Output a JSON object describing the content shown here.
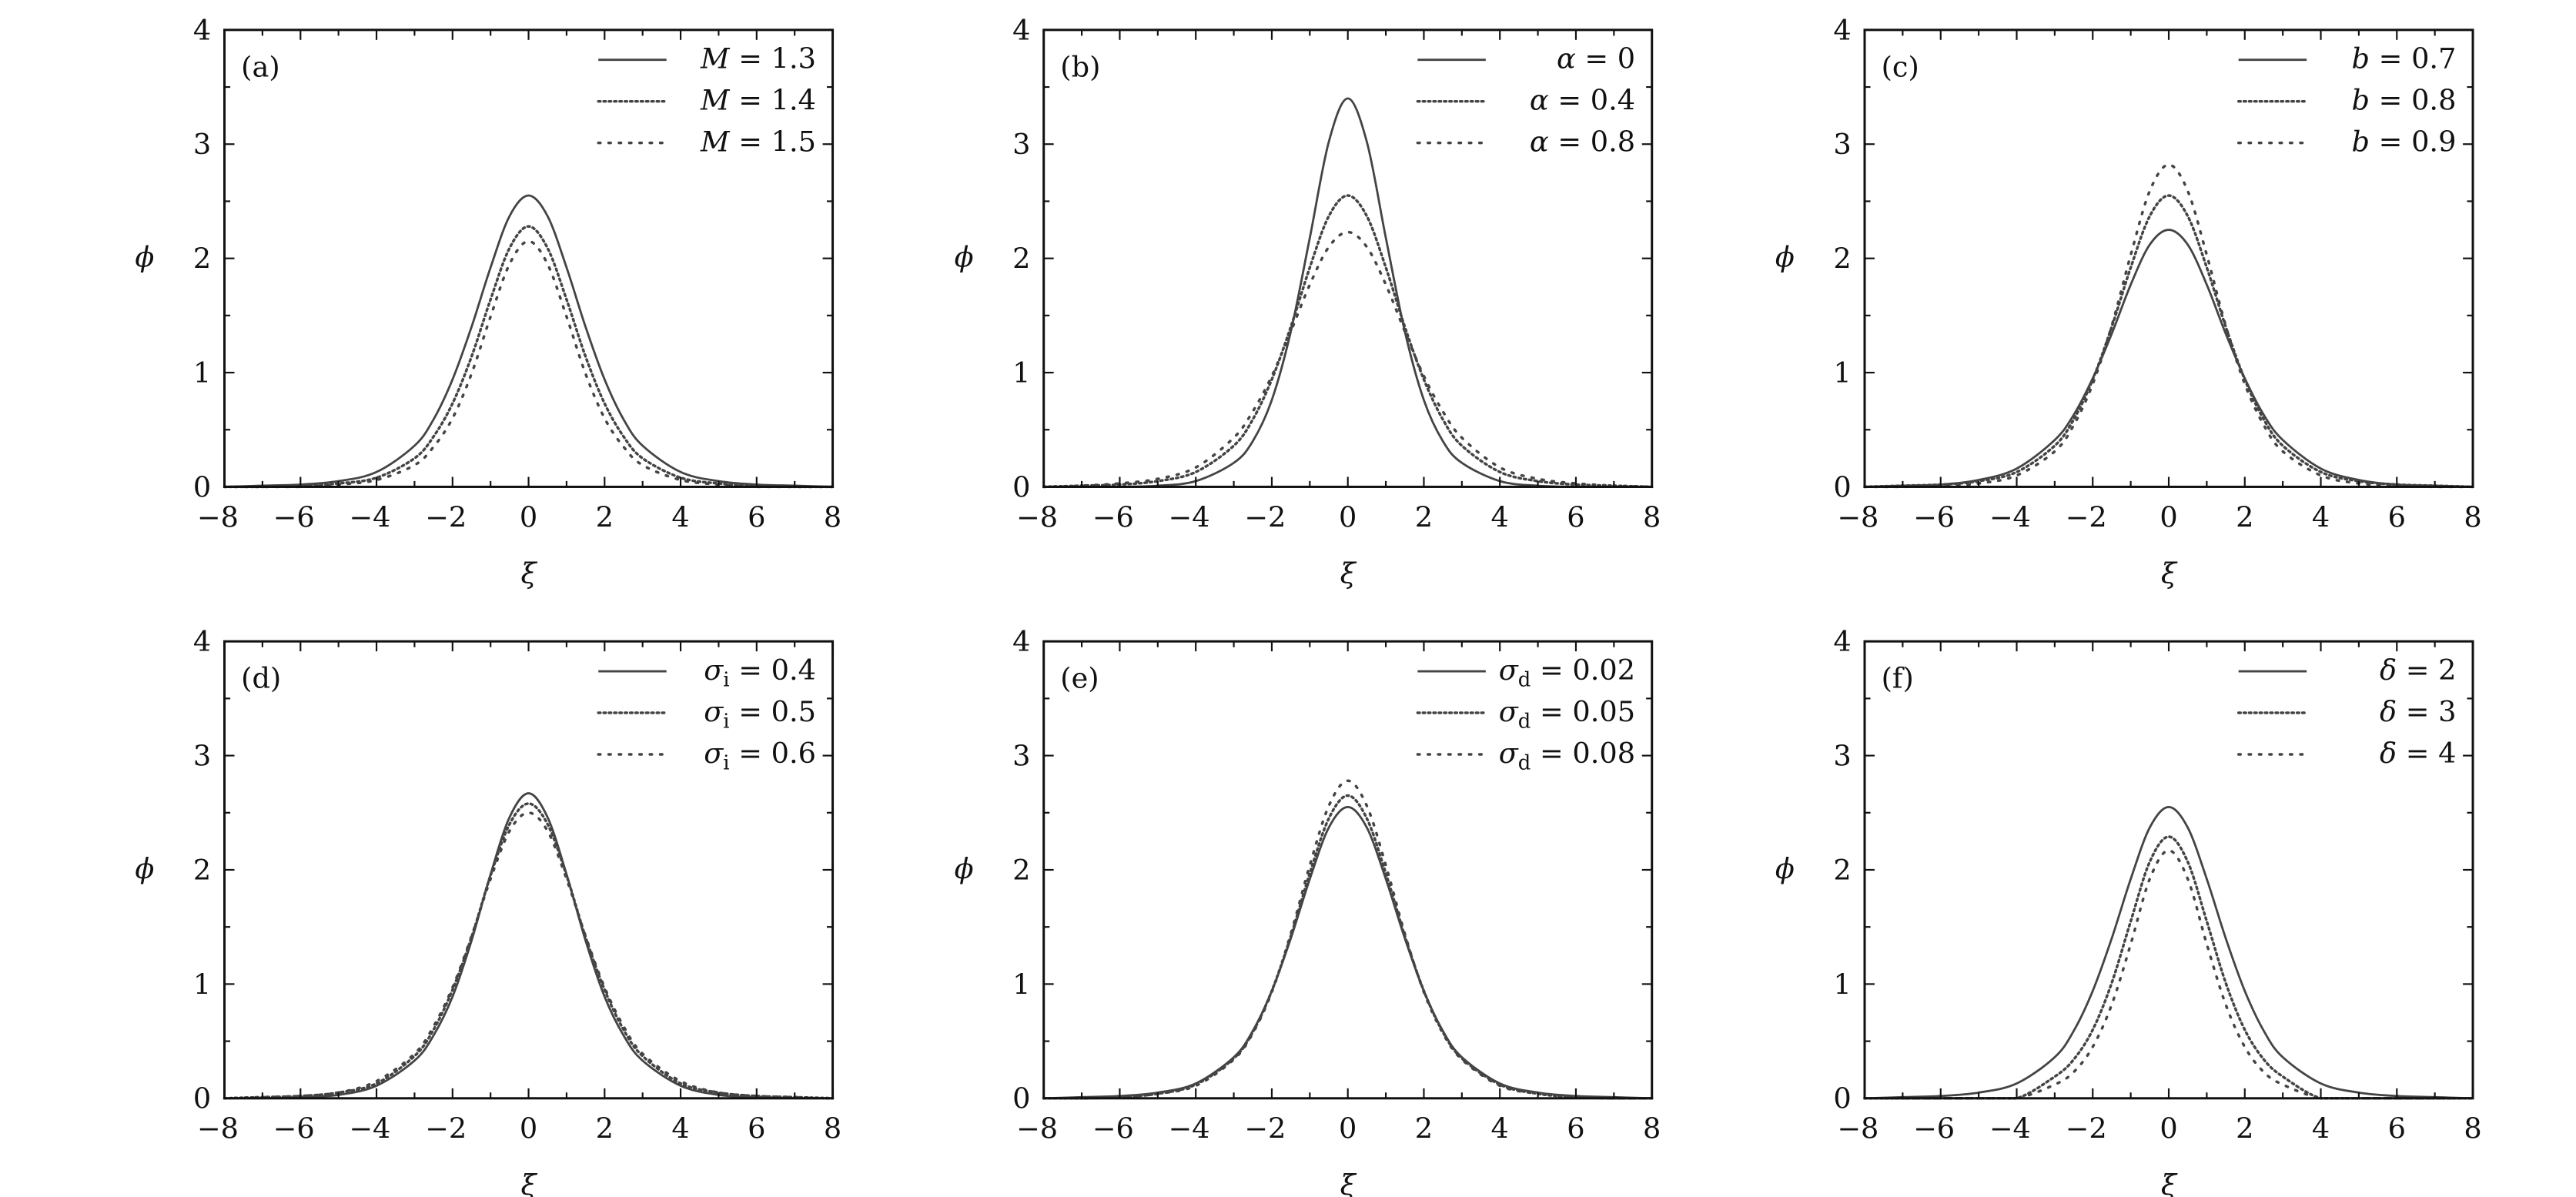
{
  "chart_data": [
    {
      "panel_label": "(a)",
      "type": "line",
      "xlabel": "ξ",
      "ylabel": "ϕ",
      "xlim": [
        -8,
        8
      ],
      "ylim": [
        0,
        4
      ],
      "xticks": [
        "−8",
        "−6",
        "−4",
        "−2",
        "0",
        "2",
        "4",
        "6",
        "8"
      ],
      "yticks": [
        "0",
        "1",
        "2",
        "3",
        "4"
      ],
      "legend": "top-right",
      "grid": false,
      "x": [
        -8,
        -7,
        -6,
        -5,
        -4,
        -3,
        -2.5,
        -2,
        -1.5,
        -1,
        -0.5,
        0,
        0.5,
        1,
        1.5,
        2,
        2.5,
        3,
        4,
        5,
        6,
        7,
        8
      ],
      "series": [
        {
          "sym": "M",
          "sub": "",
          "val": " = 1.3",
          "style": "solid",
          "values": [
            0,
            0.01,
            0.02,
            0.05,
            0.13,
            0.36,
            0.59,
            0.94,
            1.4,
            1.92,
            2.37,
            2.55,
            2.37,
            1.92,
            1.4,
            0.94,
            0.59,
            0.36,
            0.13,
            0.05,
            0.02,
            0.01,
            0
          ]
        },
        {
          "sym": "M",
          "sub": "",
          "val": " = 1.4",
          "style": "dotted",
          "values": [
            0,
            0,
            0.01,
            0.03,
            0.08,
            0.25,
            0.44,
            0.73,
            1.14,
            1.64,
            2.09,
            2.28,
            2.09,
            1.64,
            1.14,
            0.73,
            0.44,
            0.25,
            0.08,
            0.03,
            0.01,
            0,
            0
          ]
        },
        {
          "sym": "M",
          "sub": "",
          "val": " = 1.5",
          "style": "sparse",
          "values": [
            0,
            0,
            0,
            0.02,
            0.06,
            0.19,
            0.35,
            0.6,
            0.99,
            1.49,
            1.95,
            2.15,
            1.95,
            1.49,
            0.99,
            0.6,
            0.35,
            0.19,
            0.06,
            0.02,
            0,
            0,
            0
          ]
        }
      ]
    },
    {
      "panel_label": "(b)",
      "type": "line",
      "xlabel": "ξ",
      "ylabel": "ϕ",
      "xlim": [
        -8,
        8
      ],
      "ylim": [
        0,
        4
      ],
      "xticks": [
        "−8",
        "−6",
        "−4",
        "−2",
        "0",
        "2",
        "4",
        "6",
        "8"
      ],
      "yticks": [
        "0",
        "1",
        "2",
        "3",
        "4"
      ],
      "legend": "top-right",
      "grid": false,
      "x": [
        -8,
        -7,
        -6,
        -5,
        -4,
        -3,
        -2.5,
        -2,
        -1.5,
        -1,
        -0.5,
        0,
        0.5,
        1,
        1.5,
        2,
        2.5,
        3,
        4,
        5,
        6,
        7,
        8
      ],
      "series": [
        {
          "sym": "α",
          "sub": "",
          "val": " = 0",
          "style": "solid",
          "values": [
            0,
            0,
            0,
            0.01,
            0.05,
            0.21,
            0.4,
            0.76,
            1.36,
            2.18,
            3.02,
            3.4,
            3.02,
            2.18,
            1.36,
            0.76,
            0.4,
            0.21,
            0.05,
            0.01,
            0,
            0,
            0
          ]
        },
        {
          "sym": "α",
          "sub": "",
          "val": " = 0.4",
          "style": "dotted",
          "values": [
            0,
            0.01,
            0.02,
            0.05,
            0.13,
            0.36,
            0.59,
            0.94,
            1.4,
            1.92,
            2.37,
            2.55,
            2.37,
            1.92,
            1.4,
            0.94,
            0.59,
            0.36,
            0.13,
            0.05,
            0.02,
            0.01,
            0
          ]
        },
        {
          "sym": "α",
          "sub": "",
          "val": " = 0.8",
          "style": "sparse",
          "values": [
            0,
            0.01,
            0.03,
            0.07,
            0.17,
            0.43,
            0.66,
            0.97,
            1.36,
            1.77,
            2.1,
            2.23,
            2.1,
            1.77,
            1.36,
            0.97,
            0.66,
            0.43,
            0.17,
            0.07,
            0.03,
            0.01,
            0
          ]
        }
      ]
    },
    {
      "panel_label": "(c)",
      "type": "line",
      "xlabel": "ξ",
      "ylabel": "ϕ",
      "xlim": [
        -8,
        8
      ],
      "ylim": [
        0,
        4
      ],
      "xticks": [
        "−8",
        "−6",
        "−4",
        "−2",
        "0",
        "2",
        "4",
        "6",
        "8"
      ],
      "yticks": [
        "0",
        "1",
        "2",
        "3",
        "4"
      ],
      "legend": "top-right",
      "grid": false,
      "x": [
        -8,
        -7,
        -6,
        -5,
        -4,
        -3,
        -2.5,
        -2,
        -1.5,
        -1,
        -0.5,
        0,
        0.5,
        1,
        1.5,
        2,
        2.5,
        3,
        4,
        5,
        6,
        7,
        8
      ],
      "series": [
        {
          "sym": "b",
          "sub": "",
          "val": " = 0.7",
          "style": "solid",
          "values": [
            0,
            0.01,
            0.02,
            0.06,
            0.16,
            0.41,
            0.63,
            0.95,
            1.34,
            1.77,
            2.12,
            2.25,
            2.12,
            1.77,
            1.34,
            0.95,
            0.63,
            0.41,
            0.16,
            0.06,
            0.02,
            0.01,
            0
          ]
        },
        {
          "sym": "b",
          "sub": "",
          "val": " = 0.8",
          "style": "dotted",
          "values": [
            0,
            0.01,
            0.02,
            0.05,
            0.13,
            0.36,
            0.59,
            0.94,
            1.4,
            1.92,
            2.37,
            2.55,
            2.37,
            1.92,
            1.4,
            0.94,
            0.59,
            0.36,
            0.13,
            0.05,
            0.02,
            0.01,
            0
          ]
        },
        {
          "sym": "b",
          "sub": "",
          "val": " = 0.9",
          "style": "sparse",
          "values": [
            0,
            0,
            0.01,
            0.03,
            0.1,
            0.31,
            0.54,
            0.9,
            1.41,
            2.03,
            2.59,
            2.82,
            2.59,
            2.03,
            1.41,
            0.9,
            0.54,
            0.31,
            0.1,
            0.03,
            0.01,
            0,
            0
          ]
        }
      ]
    },
    {
      "panel_label": "(d)",
      "type": "line",
      "xlabel": "ξ",
      "ylabel": "ϕ",
      "xlim": [
        -8,
        8
      ],
      "ylim": [
        0,
        4
      ],
      "xticks": [
        "−8",
        "−6",
        "−4",
        "−2",
        "0",
        "2",
        "4",
        "6",
        "8"
      ],
      "yticks": [
        "0",
        "1",
        "2",
        "3",
        "4"
      ],
      "legend": "top-right",
      "grid": false,
      "x": [
        -8,
        -7,
        -6,
        -5,
        -4,
        -3,
        -2.5,
        -2,
        -1.5,
        -1,
        -0.5,
        0,
        0.5,
        1,
        1.5,
        2,
        2.5,
        3,
        4,
        5,
        6,
        7,
        8
      ],
      "series": [
        {
          "sym": "σ",
          "sub": "i",
          "val": " = 0.4",
          "style": "solid",
          "values": [
            0,
            0,
            0.01,
            0.03,
            0.11,
            0.33,
            0.55,
            0.89,
            1.38,
            1.96,
            2.46,
            2.67,
            2.46,
            1.96,
            1.38,
            0.89,
            0.55,
            0.33,
            0.11,
            0.03,
            0.01,
            0,
            0
          ]
        },
        {
          "sym": "σ",
          "sub": "i",
          "val": " = 0.5",
          "style": "dotted",
          "values": [
            0,
            0.01,
            0.02,
            0.05,
            0.13,
            0.37,
            0.6,
            0.95,
            1.41,
            1.95,
            2.4,
            2.58,
            2.4,
            1.95,
            1.41,
            0.95,
            0.6,
            0.37,
            0.13,
            0.05,
            0.02,
            0.01,
            0
          ]
        },
        {
          "sym": "σ",
          "sub": "i",
          "val": " = 0.6",
          "style": "sparse",
          "values": [
            0,
            0.01,
            0.02,
            0.05,
            0.15,
            0.39,
            0.63,
            0.97,
            1.42,
            1.92,
            2.34,
            2.5,
            2.34,
            1.92,
            1.42,
            0.97,
            0.63,
            0.39,
            0.15,
            0.05,
            0.02,
            0.01,
            0
          ]
        }
      ]
    },
    {
      "panel_label": "(e)",
      "type": "line",
      "xlabel": "ξ",
      "ylabel": "ϕ",
      "xlim": [
        -8,
        8
      ],
      "ylim": [
        0,
        4
      ],
      "xticks": [
        "−8",
        "−6",
        "−4",
        "−2",
        "0",
        "2",
        "4",
        "6",
        "8"
      ],
      "yticks": [
        "0",
        "1",
        "2",
        "3",
        "4"
      ],
      "legend": "top-right",
      "grid": false,
      "x": [
        -8,
        -7,
        -6,
        -5,
        -4,
        -3,
        -2.5,
        -2,
        -1.5,
        -1,
        -0.5,
        0,
        0.5,
        1,
        1.5,
        2,
        2.5,
        3,
        4,
        5,
        6,
        7,
        8
      ],
      "series": [
        {
          "sym": "σ",
          "sub": "d",
          "val": " = 0.02",
          "style": "solid",
          "values": [
            0,
            0.01,
            0.02,
            0.05,
            0.13,
            0.36,
            0.59,
            0.94,
            1.4,
            1.92,
            2.37,
            2.55,
            2.37,
            1.92,
            1.4,
            0.94,
            0.59,
            0.36,
            0.13,
            0.05,
            0.02,
            0.01,
            0
          ]
        },
        {
          "sym": "σ",
          "sub": "d",
          "val": " = 0.05",
          "style": "dotted",
          "values": [
            0,
            0,
            0.01,
            0.04,
            0.12,
            0.35,
            0.58,
            0.94,
            1.42,
            1.97,
            2.45,
            2.65,
            2.45,
            1.97,
            1.42,
            0.94,
            0.58,
            0.35,
            0.12,
            0.04,
            0.01,
            0,
            0
          ]
        },
        {
          "sym": "σ",
          "sub": "d",
          "val": " = 0.08",
          "style": "sparse",
          "values": [
            0,
            0,
            0.01,
            0.04,
            0.11,
            0.34,
            0.57,
            0.93,
            1.44,
            2.04,
            2.56,
            2.78,
            2.56,
            2.04,
            1.44,
            0.93,
            0.57,
            0.34,
            0.11,
            0.04,
            0.01,
            0,
            0
          ]
        }
      ]
    },
    {
      "panel_label": "(f)",
      "type": "line",
      "xlabel": "ξ",
      "ylabel": "ϕ",
      "xlim": [
        -8,
        8
      ],
      "ylim": [
        0,
        4
      ],
      "xticks": [
        "−8",
        "−6",
        "−4",
        "−2",
        "0",
        "2",
        "4",
        "6",
        "8"
      ],
      "yticks": [
        "0",
        "1",
        "2",
        "3",
        "4"
      ],
      "legend": "top-right",
      "grid": false,
      "x": [
        -8,
        -7,
        -6,
        -5,
        -4,
        -3,
        -2.5,
        -2,
        -1.5,
        -1,
        -0.5,
        0,
        0.5,
        1,
        1.5,
        2,
        2.5,
        3,
        4,
        5,
        6,
        7,
        8
      ],
      "series": [
        {
          "sym": "δ",
          "sub": "",
          "val": " = 2",
          "style": "solid",
          "values": [
            0,
            0.01,
            0.02,
            0.05,
            0.13,
            0.36,
            0.59,
            0.94,
            1.4,
            1.92,
            2.37,
            2.55,
            2.37,
            1.92,
            1.4,
            0.94,
            0.59,
            0.36,
            0.13,
            0.05,
            0.02,
            0.01,
            0
          ]
        },
        {
          "sym": "δ",
          "sub": "",
          "val": " = 3",
          "style": "dotted",
          "values": [
            0,
            0,
            0,
            0,
            0,
            0.19,
            0.34,
            0.6,
            1.01,
            1.55,
            2.07,
            2.29,
            2.07,
            1.55,
            1.01,
            0.6,
            0.34,
            0.19,
            0,
            0,
            0,
            0,
            0
          ]
        },
        {
          "sym": "δ",
          "sub": "",
          "val": " = 4",
          "style": "sparse",
          "values": [
            0,
            0,
            0,
            0,
            0,
            0.12,
            0.23,
            0.45,
            0.82,
            1.35,
            1.92,
            2.17,
            1.92,
            1.35,
            0.82,
            0.45,
            0.23,
            0.12,
            0,
            0,
            0,
            0,
            0
          ]
        }
      ]
    }
  ],
  "colors": {
    "line": "#444444",
    "axis": "#111111"
  }
}
